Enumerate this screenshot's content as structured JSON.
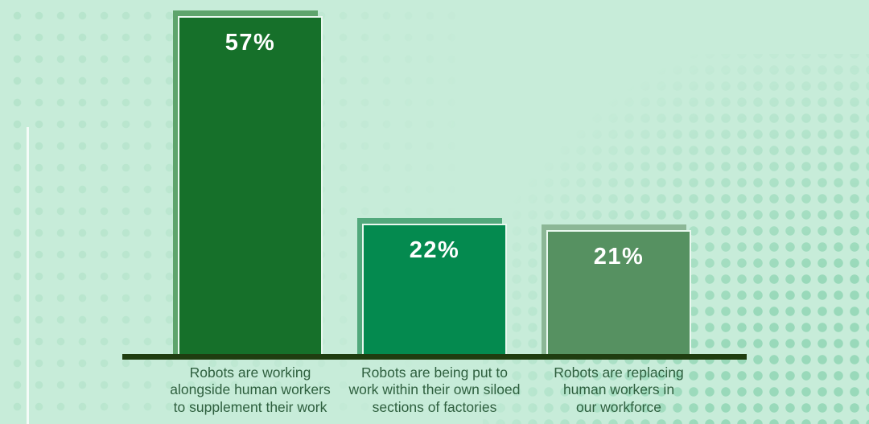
{
  "chart_data": {
    "type": "bar",
    "title": "",
    "categories": [
      "Robots are working alongside human workers to supplement their work",
      "Robots are being put to work within their own siloed sections of factories",
      "Robots are replacing human workers in our workforce"
    ],
    "categories_lines": [
      [
        "Robots are working",
        "alongside human workers",
        "to supplement their work"
      ],
      [
        "Robots are being put to",
        "work within their own siloed",
        "sections of factories"
      ],
      [
        "Robots are replacing",
        "human workers in",
        "our workforce"
      ]
    ],
    "values": [
      57,
      22,
      21
    ],
    "value_labels": [
      "57%",
      "22%",
      "21%"
    ],
    "ylim": [
      0,
      60
    ],
    "grid": false,
    "legend": false,
    "orientation": "vertical",
    "bar_fill_colors": [
      "#16702a",
      "#048a4f",
      "#569161"
    ],
    "bar_shadow_colors": [
      "#5ea46c",
      "#52a97c",
      "#8cb796"
    ],
    "bar_stroke_color": "#e9f8ef",
    "axis_color": "#1f3d10",
    "value_label_color": "#ffffff",
    "category_label_color": "#2e5f3e",
    "background_color": "#c7ecd9",
    "dot_pattern_left_color": "#b4e3ca",
    "dot_pattern_right_color": "#97d8b8"
  }
}
